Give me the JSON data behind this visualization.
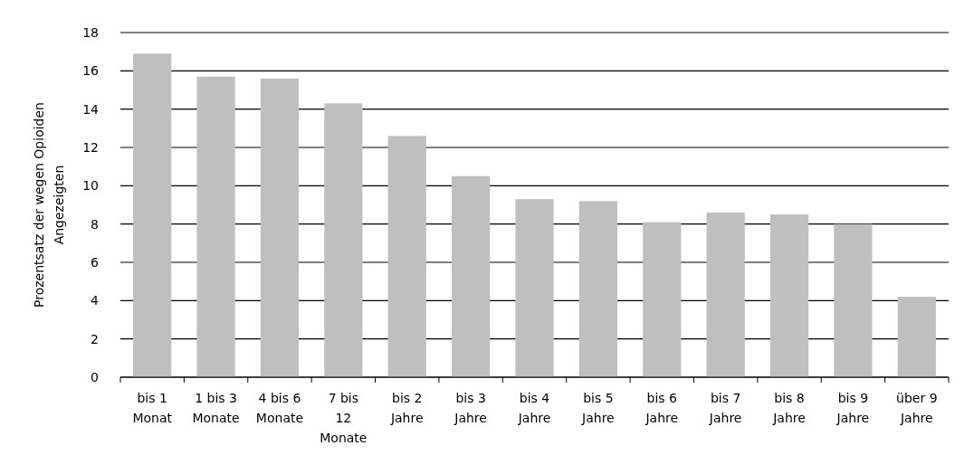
{
  "chart_data": {
    "type": "bar",
    "ylabel": "Prozentsatz der wegen Opioiden Angezeigten",
    "categories": [
      "bis 1 Monat",
      "1 bis 3 Monate",
      "4 bis 6 Monate",
      "7 bis 12 Monate",
      "bis 2 Jahre",
      "bis 3 Jahre",
      "bis 4 Jahre",
      "bis 5 Jahre",
      "bis 6 Jahre",
      "bis 7 Jahre",
      "bis 8 Jahre",
      "bis 9 Jahre",
      "über 9 Jahre"
    ],
    "values": [
      16.9,
      15.7,
      15.6,
      14.3,
      12.6,
      10.5,
      9.3,
      9.2,
      8.1,
      8.6,
      8.5,
      8.0,
      4.2
    ],
    "color": "#bfbfbf",
    "ylim": [
      0,
      18
    ],
    "yticks": [
      0,
      2,
      4,
      6,
      8,
      10,
      12,
      14,
      16,
      18
    ],
    "grid": "y"
  }
}
